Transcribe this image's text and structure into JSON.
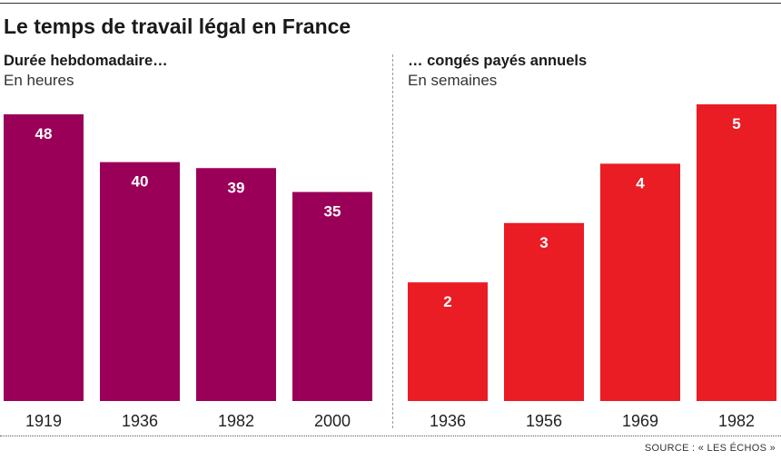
{
  "header": {
    "title": "Le temps de travail légal en France"
  },
  "footer": {
    "source": "SOURCE : « LES ÉCHOS »"
  },
  "chart_data": [
    {
      "type": "bar",
      "title": "Durée hebdomadaire…",
      "subtitle": "En heures",
      "categories": [
        "1919",
        "1936",
        "1982",
        "2000"
      ],
      "values": [
        48,
        40,
        39,
        35
      ],
      "ylim": [
        0,
        48
      ],
      "grid": false,
      "color": "#9b0058"
    },
    {
      "type": "bar",
      "title": "… congés payés annuels",
      "subtitle": "En semaines",
      "categories": [
        "1936",
        "1956",
        "1969",
        "1982"
      ],
      "values": [
        2,
        3,
        4,
        5
      ],
      "ylim": [
        0,
        5
      ],
      "grid": false,
      "color": "#ea1c24"
    }
  ]
}
